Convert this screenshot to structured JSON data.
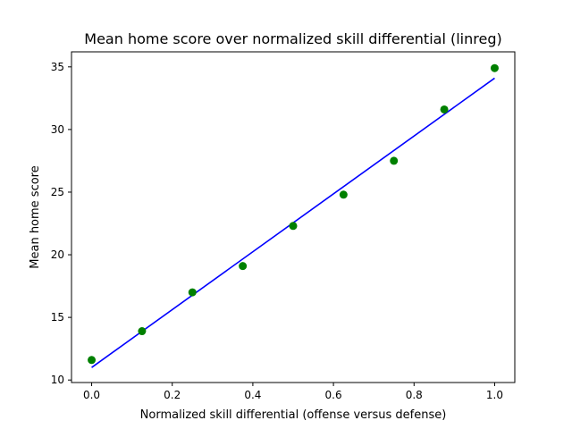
{
  "chart_data": {
    "type": "scatter",
    "title": "Mean home score over normalized skill differential (linreg)",
    "xlabel": "Normalized skill differential (offense versus defense)",
    "ylabel": "Mean home score",
    "xlim": [
      -0.05,
      1.05
    ],
    "ylim": [
      9.8,
      36.2
    ],
    "xticks": [
      0.0,
      0.2,
      0.4,
      0.6,
      0.8,
      1.0
    ],
    "xtick_labels": [
      "0.0",
      "0.2",
      "0.4",
      "0.6",
      "0.8",
      "1.0"
    ],
    "yticks": [
      10,
      15,
      20,
      25,
      30,
      35
    ],
    "ytick_labels": [
      "10",
      "15",
      "20",
      "25",
      "30",
      "35"
    ],
    "grid": false,
    "series": [
      {
        "kind": "scatter",
        "color": "#008000",
        "x": [
          0.0,
          0.125,
          0.25,
          0.375,
          0.5,
          0.625,
          0.75,
          0.875,
          1.0
        ],
        "y": [
          11.6,
          13.9,
          17.0,
          19.1,
          22.3,
          24.8,
          27.5,
          31.6,
          34.9
        ]
      },
      {
        "kind": "line",
        "color": "#0000ff",
        "x": [
          0.0,
          1.0
        ],
        "y": [
          11.0,
          34.1
        ]
      }
    ]
  }
}
